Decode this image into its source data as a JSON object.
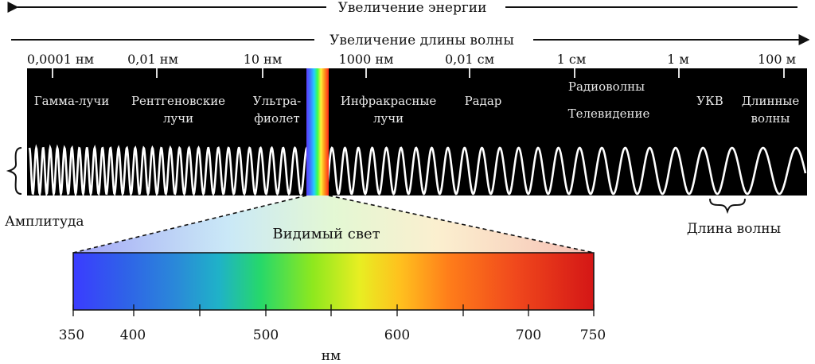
{
  "energy_label": "Увеличение энергии",
  "wavelength_label": "Увеличение длины волны",
  "scale_ticks": [
    "0,0001 нм",
    "0,01 нм",
    "10 нм",
    "1000 нм",
    "0,01 см",
    "1 см",
    "1 м",
    "100 м"
  ],
  "bands": {
    "gamma": "Гамма-лучи",
    "xray": [
      "Рентгеновские",
      "лучи"
    ],
    "uv": [
      "Ультра-",
      "фиолет"
    ],
    "ir": [
      "Инфракрасные",
      "лучи"
    ],
    "radar": "Радар",
    "radio": "Радиоволны",
    "tv": "Телевидение",
    "vhf": "УКВ",
    "long": [
      "Длинные",
      "волны"
    ]
  },
  "amplitude_label": "Амплитуда",
  "wavelength_marker_label": "Длина волны",
  "visible_light_label": "Видимый свет",
  "spectrum_ticks": [
    "350",
    "400",
    "500",
    "600",
    "700",
    "750"
  ],
  "spectrum_unit": "нм",
  "colors": {
    "band_bg": "#000000",
    "wave": "#ffffff",
    "text_dark": "#111111",
    "text_light": "#e8e8e8"
  }
}
